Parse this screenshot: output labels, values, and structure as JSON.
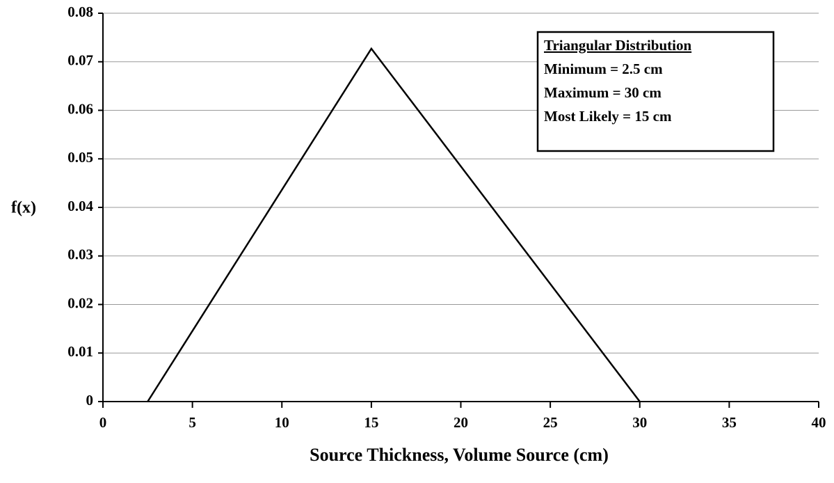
{
  "chart_data": {
    "type": "line",
    "xlabel": "Source Thickness, Volume Source (cm)",
    "ylabel": "f(x)",
    "x": [
      2.5,
      15,
      30
    ],
    "values": [
      0,
      0.0727,
      0
    ],
    "color": "#000000",
    "xlim": [
      0,
      40
    ],
    "xticks": [
      0,
      5,
      10,
      15,
      20,
      25,
      30,
      35,
      40
    ],
    "ylim": [
      0,
      0.08
    ],
    "yticks": [
      0,
      0.01,
      0.02,
      0.03,
      0.04,
      0.05,
      0.06,
      0.07,
      0.08
    ],
    "grid": true,
    "annotations": [
      "Triangular Distribution",
      "Minimum = 2.5 cm",
      "Maximum = 30 cm",
      "Most Likely = 15 cm"
    ]
  }
}
